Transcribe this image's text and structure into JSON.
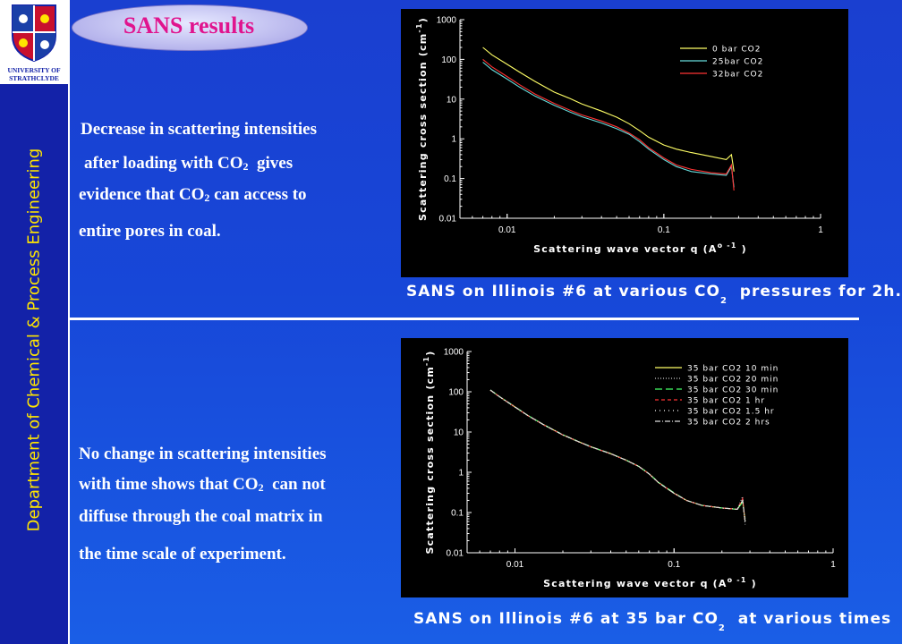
{
  "sidebar": {
    "logo": {
      "wordmark_top": "UNIVERSITY OF",
      "wordmark_bottom": "STRATHCLYDE"
    },
    "department": "Department of Chemical & Process Engineering"
  },
  "title": "SANS results",
  "text_top": {
    "line1": "Decrease in scattering intensities",
    "line2a": "after loading  with CO",
    "line2sub": "2",
    "line2b": "gives",
    "line3a": "evidence  that CO",
    "line3sub": "2",
    "line3b": "can access to",
    "line4": "entire pores  in coal."
  },
  "text_bottom": {
    "line1": "No change in scattering intensities",
    "line2a": "with time shows that CO",
    "line2sub": "2",
    "line2b": "can not",
    "line3": "diffuse through  the coal matrix in",
    "line4": "the time scale of  experiment."
  },
  "captions": {
    "top_a": "SANS on Illinois #6 at various CO",
    "top_sub": "2",
    "top_b": "pressures for 2h.",
    "bottom_a": "SANS on Illinois #6 at 35 bar CO",
    "bottom_sub": "2",
    "bottom_b": "at various times"
  },
  "colors": {
    "background": "#1a4ad8",
    "sidebar": "#1322a8",
    "department_text": "#ffe600",
    "title_text": "#e0148e",
    "plot_background": "#000000"
  },
  "chart_data": [
    {
      "type": "line",
      "xlabel": "Scattering wave vector q (A",
      "xlabel_sup": "o -1",
      "xlabel_end": ")",
      "ylabel": "Scattering cross section (cm",
      "ylabel_sup": "-1",
      "ylabel_end": ")",
      "x_scale": "log",
      "y_scale": "log",
      "xlim": [
        0.005,
        1
      ],
      "ylim": [
        0.01,
        1000
      ],
      "x_ticks": [
        0.01,
        0.1,
        1
      ],
      "x_tick_labels": [
        "0.01",
        "0.1",
        "1"
      ],
      "y_ticks": [
        0.01,
        0.1,
        1,
        10,
        100,
        1000
      ],
      "y_tick_labels": [
        "0.01",
        "0.1",
        "1",
        "10",
        "100",
        "1000"
      ],
      "grid": false,
      "legend_position": "top-right",
      "series": [
        {
          "name": "0  bar CO2",
          "color": "#ffff66",
          "dash": "solid",
          "x": [
            0.007,
            0.008,
            0.01,
            0.012,
            0.015,
            0.02,
            0.025,
            0.03,
            0.04,
            0.05,
            0.06,
            0.07,
            0.08,
            0.1,
            0.12,
            0.15,
            0.2,
            0.25,
            0.27,
            0.28
          ],
          "y": [
            200,
            130,
            75,
            48,
            28,
            15,
            10.5,
            7.5,
            5,
            3.5,
            2.4,
            1.6,
            1.1,
            0.7,
            0.55,
            0.45,
            0.36,
            0.3,
            0.4,
            0.15
          ]
        },
        {
          "name": "25bar CO2",
          "color": "#66dddd",
          "dash": "solid",
          "x": [
            0.007,
            0.008,
            0.01,
            0.012,
            0.015,
            0.02,
            0.025,
            0.03,
            0.04,
            0.05,
            0.06,
            0.07,
            0.08,
            0.1,
            0.12,
            0.15,
            0.2,
            0.25,
            0.27,
            0.28
          ],
          "y": [
            85,
            55,
            32,
            20,
            12,
            7,
            4.8,
            3.6,
            2.5,
            1.8,
            1.3,
            0.85,
            0.55,
            0.3,
            0.2,
            0.15,
            0.13,
            0.12,
            0.2,
            0.06
          ]
        },
        {
          "name": "32bar CO2",
          "color": "#ff3333",
          "dash": "solid",
          "x": [
            0.007,
            0.008,
            0.01,
            0.012,
            0.015,
            0.02,
            0.025,
            0.03,
            0.04,
            0.05,
            0.06,
            0.07,
            0.08,
            0.1,
            0.12,
            0.15,
            0.2,
            0.25,
            0.27,
            0.28
          ],
          "y": [
            100,
            65,
            37,
            23,
            13.5,
            7.8,
            5.3,
            4,
            2.8,
            2,
            1.4,
            0.95,
            0.6,
            0.33,
            0.22,
            0.17,
            0.14,
            0.13,
            0.22,
            0.05
          ]
        }
      ]
    },
    {
      "type": "line",
      "xlabel": "Scattering wave vector q (A",
      "xlabel_sup": "o -1",
      "xlabel_end": ")",
      "ylabel": "Scattering cross section (cm",
      "ylabel_sup": "-1",
      "ylabel_end": ")",
      "x_scale": "log",
      "y_scale": "log",
      "xlim": [
        0.005,
        1
      ],
      "ylim": [
        0.01,
        1000
      ],
      "x_ticks": [
        0.01,
        0.1,
        1
      ],
      "x_tick_labels": [
        "0.01",
        "0.1",
        "1"
      ],
      "y_ticks": [
        0.01,
        0.1,
        1,
        10,
        100,
        1000
      ],
      "y_tick_labels": [
        "0.01",
        "0.1",
        "1",
        "10",
        "100",
        "1000"
      ],
      "grid": false,
      "legend_position": "top-right",
      "series": [
        {
          "name": "35 bar CO2 10 min",
          "color": "#ffff66",
          "dash": "solid",
          "x": [
            0.007,
            0.008,
            0.01,
            0.012,
            0.015,
            0.02,
            0.025,
            0.03,
            0.04,
            0.05,
            0.06,
            0.07,
            0.08,
            0.1,
            0.12,
            0.15,
            0.2,
            0.25,
            0.27,
            0.28
          ],
          "y": [
            110,
            75,
            42,
            26,
            15.5,
            8.5,
            5.8,
            4.3,
            2.9,
            2,
            1.4,
            0.9,
            0.55,
            0.3,
            0.2,
            0.15,
            0.13,
            0.12,
            0.2,
            0.06
          ]
        },
        {
          "name": "35 bar CO2 20 min",
          "color": "#cccccc",
          "dash": "1,2",
          "x": [
            0.007,
            0.008,
            0.01,
            0.012,
            0.015,
            0.02,
            0.025,
            0.03,
            0.04,
            0.05,
            0.06,
            0.07,
            0.08,
            0.1,
            0.12,
            0.15,
            0.2,
            0.25,
            0.27,
            0.28
          ],
          "y": [
            108,
            74,
            41,
            25.5,
            15.2,
            8.4,
            5.7,
            4.25,
            2.85,
            1.98,
            1.38,
            0.9,
            0.55,
            0.3,
            0.2,
            0.15,
            0.13,
            0.12,
            0.25,
            0.05
          ]
        },
        {
          "name": "35 bar CO2 30 min",
          "color": "#44ff66",
          "dash": "8,4",
          "x": [
            0.007,
            0.008,
            0.01,
            0.012,
            0.015,
            0.02,
            0.025,
            0.03,
            0.04,
            0.05,
            0.06,
            0.07,
            0.08,
            0.1,
            0.12,
            0.15,
            0.2,
            0.25,
            0.27,
            0.28
          ],
          "y": [
            111,
            76,
            42.5,
            26.2,
            15.6,
            8.6,
            5.85,
            4.35,
            2.92,
            2.02,
            1.41,
            0.91,
            0.56,
            0.31,
            0.2,
            0.15,
            0.13,
            0.12,
            0.18,
            0.07
          ]
        },
        {
          "name": "35 bar CO2 1 hr",
          "color": "#ff3333",
          "dash": "4,3",
          "x": [
            0.007,
            0.008,
            0.01,
            0.012,
            0.015,
            0.02,
            0.025,
            0.03,
            0.04,
            0.05,
            0.06,
            0.07,
            0.08,
            0.1,
            0.12,
            0.15,
            0.2,
            0.25,
            0.27,
            0.28
          ],
          "y": [
            109,
            75,
            41.8,
            25.8,
            15.4,
            8.5,
            5.78,
            4.3,
            2.88,
            2,
            1.4,
            0.9,
            0.55,
            0.3,
            0.2,
            0.15,
            0.13,
            0.12,
            0.22,
            0.06
          ]
        },
        {
          "name": "35 bar CO2 1.5 hr",
          "color": "#ffffff",
          "dash": "1,4",
          "x": [
            0.007,
            0.008,
            0.01,
            0.012,
            0.015,
            0.02,
            0.025,
            0.03,
            0.04,
            0.05,
            0.06,
            0.07,
            0.08,
            0.1,
            0.12,
            0.15,
            0.2,
            0.25,
            0.27,
            0.28
          ],
          "y": [
            110,
            75,
            42,
            26,
            15.5,
            8.5,
            5.8,
            4.3,
            2.9,
            2,
            1.4,
            0.9,
            0.55,
            0.3,
            0.2,
            0.15,
            0.13,
            0.12,
            0.2,
            0.06
          ]
        },
        {
          "name": "35 bar CO2 2 hrs",
          "color": "#dddddd",
          "dash": "6,2,1,2",
          "x": [
            0.007,
            0.008,
            0.01,
            0.012,
            0.015,
            0.02,
            0.025,
            0.03,
            0.04,
            0.05,
            0.06,
            0.07,
            0.08,
            0.1,
            0.12,
            0.15,
            0.2,
            0.25,
            0.27,
            0.28
          ],
          "y": [
            110,
            75,
            42,
            26,
            15.5,
            8.5,
            5.8,
            4.3,
            2.9,
            2,
            1.4,
            0.9,
            0.55,
            0.3,
            0.2,
            0.15,
            0.13,
            0.12,
            0.2,
            0.06
          ]
        }
      ]
    }
  ]
}
